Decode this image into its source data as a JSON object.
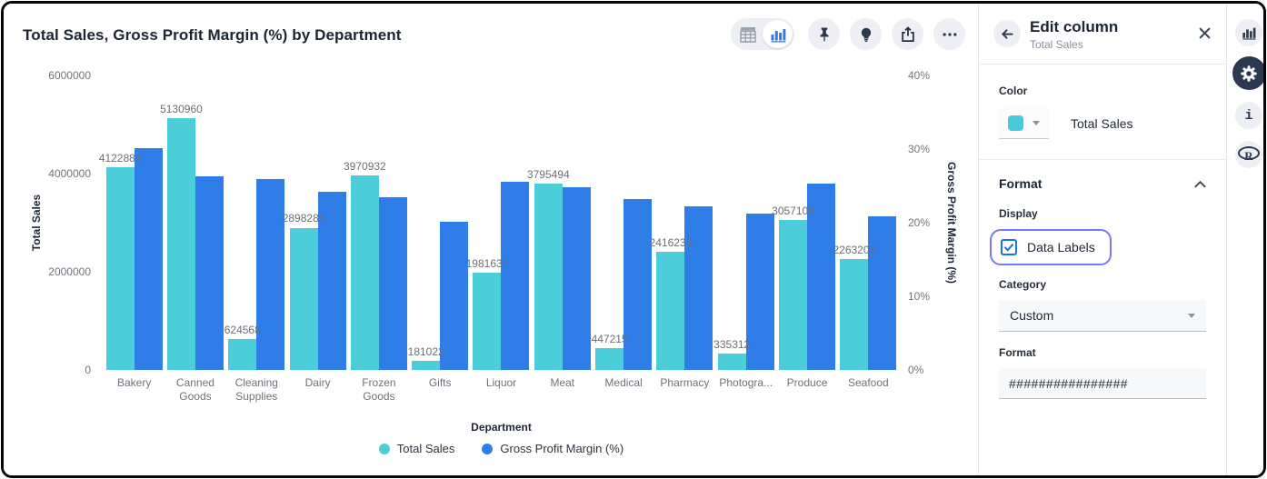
{
  "colors": {
    "series_teal": "#4CCDDA",
    "series_blue": "#2F7DE8",
    "focus_ring": "#7B79F1",
    "checkbox_blue": "#1A73E8",
    "icon_navy": "#2B3950"
  },
  "toolbar": {
    "buttons": [
      "table-view",
      "chart-view",
      "pin",
      "suggestions",
      "export",
      "more"
    ]
  },
  "chart_data": {
    "type": "bar",
    "title": "Total Sales, Gross Profit Margin (%) by Department",
    "categories": [
      "Bakery",
      "Canned Goods",
      "Cleaning Supplies",
      "Dairy",
      "Frozen Goods",
      "Gifts",
      "Liquor",
      "Meat",
      "Medical",
      "Pharmacy",
      "Photogra...",
      "Produce",
      "Seafood"
    ],
    "series": [
      {
        "name": "Total Sales",
        "axis": "left",
        "color": "#4CCDDA",
        "data_labels": true,
        "values": [
          4122881,
          5130960,
          624568,
          2898285,
          3970932,
          181022,
          1981634,
          3795494,
          447215,
          2416230,
          335312,
          3057105,
          2263205
        ]
      },
      {
        "name": "Gross Profit Margin (%)",
        "axis": "right",
        "color": "#2F7DE8",
        "data_labels": false,
        "values": [
          30.1,
          26.3,
          25.9,
          24.2,
          23.5,
          20.1,
          25.6,
          24.8,
          23.2,
          22.2,
          21.2,
          25.3,
          20.9
        ]
      }
    ],
    "left_axis": {
      "label": "Total Sales",
      "ticks": [
        "0",
        "2000000",
        "4000000",
        "6000000"
      ],
      "max": 6000000
    },
    "right_axis": {
      "label": "Gross Profit Margin (%)",
      "ticks": [
        "0%",
        "10%",
        "20%",
        "30%",
        "40%"
      ],
      "max": 40
    },
    "xlabel": "Department",
    "legend_position": "bottom",
    "grid": false
  },
  "panel": {
    "title": "Edit column",
    "subtitle": "Total Sales",
    "color": {
      "label": "Color",
      "swatch_color": "#45CBD9",
      "value": "Total Sales"
    },
    "format": {
      "section_title": "Format",
      "display_label": "Display",
      "checkbox_label": "Data Labels",
      "checkbox_checked": true,
      "category_label": "Category",
      "category_value": "Custom",
      "format_label": "Format",
      "format_value": "################"
    }
  },
  "right_rail": {
    "icons": [
      "chart",
      "settings",
      "info",
      "r-logo"
    ],
    "info_glyph": "i",
    "r_glyph": "R"
  }
}
